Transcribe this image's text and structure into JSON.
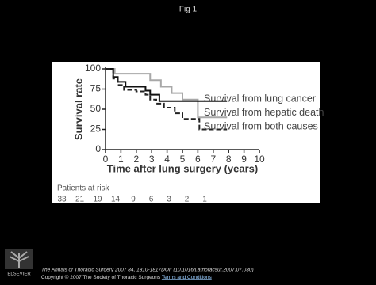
{
  "header": {
    "title": "Fig 1"
  },
  "chart_data": {
    "type": "step",
    "xlabel": "Time after lung surgery (years)",
    "ylabel": "Survival rate",
    "xlim": [
      0,
      10
    ],
    "xticks": [
      0,
      1,
      2,
      3,
      4,
      5,
      6,
      7,
      8,
      9,
      10
    ],
    "ylim": [
      0,
      100
    ],
    "yticks": [
      0,
      25,
      50,
      75,
      100
    ],
    "series": [
      {
        "name": "Survival from lung cancer",
        "color": "#a8a8a8",
        "dash": false,
        "x": [
          0,
          0.6,
          2.9,
          3.6,
          4.3,
          5.0,
          6.0,
          7.9
        ],
        "values": [
          100,
          94,
          86,
          78,
          70,
          62,
          40,
          40
        ]
      },
      {
        "name": "Survival from hepatic death",
        "color": "#111111",
        "dash": false,
        "x": [
          0,
          0.5,
          0.8,
          1.3,
          2.6,
          2.9,
          3.5,
          7.9
        ],
        "values": [
          100,
          90,
          84,
          78,
          73,
          68,
          60,
          60
        ]
      },
      {
        "name": "Survival from both causes",
        "color": "#222222",
        "dash": true,
        "x": [
          0,
          0.5,
          0.8,
          1.2,
          2.0,
          2.6,
          2.9,
          3.3,
          3.8,
          4.5,
          5.0,
          6.1,
          7.9
        ],
        "values": [
          100,
          88,
          80,
          74,
          72,
          68,
          62,
          57,
          52,
          45,
          38,
          25,
          25
        ]
      }
    ],
    "patients_at_risk": {
      "label": "Patients at risk",
      "values": [
        33,
        21,
        19,
        14,
        9,
        6,
        3,
        2,
        1
      ]
    }
  },
  "footer": {
    "logo": "ELSEVIER",
    "citation": "The Annals of Thoracic Surgery 2007 84, 1810-1817DOI: (10.1016/j.athoracsur.2007.07.030)",
    "copyright": "Copyright © 2007 The Society of Thoracic Surgeons",
    "link": "Terms and Conditions"
  }
}
